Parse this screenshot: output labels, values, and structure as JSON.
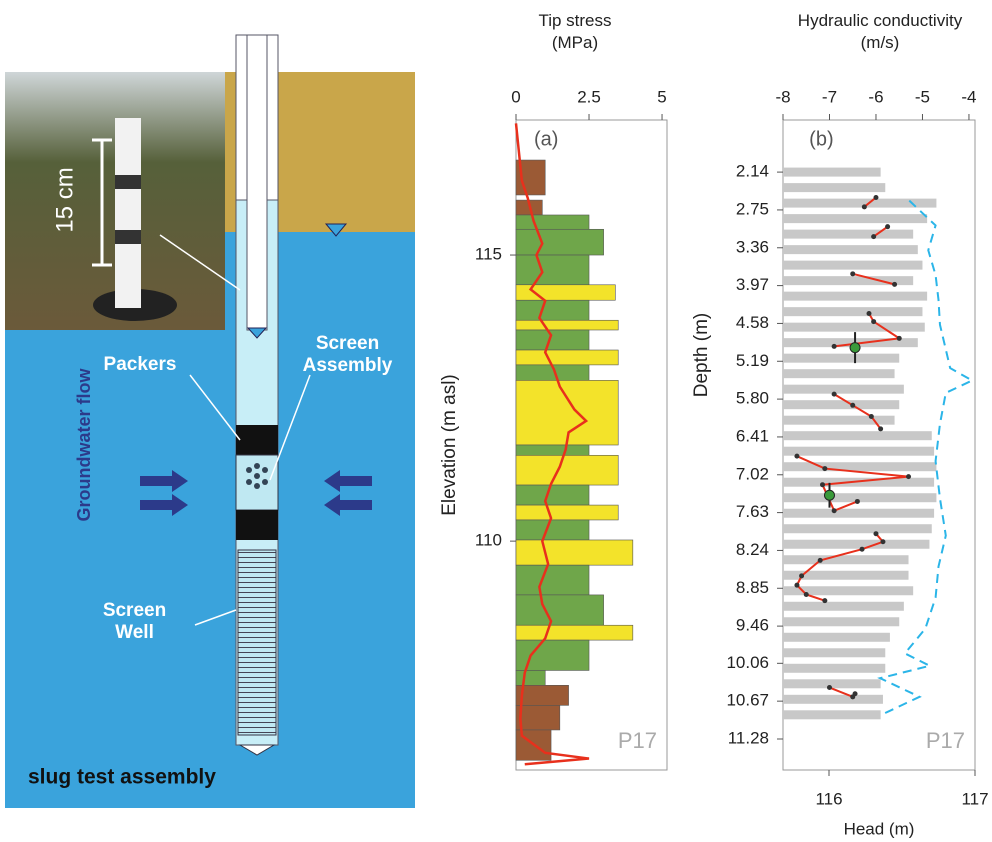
{
  "diagram": {
    "scale_label": "15 cm",
    "packers": "Packers",
    "screen_assembly": "Screen Assembly",
    "groundwater_flow": "Groundwater flow",
    "screen_well": "Screen Well",
    "caption": "slug test assembly"
  },
  "chart_data": [
    {
      "type": "bar",
      "title": "Tip stress (MPa)",
      "ylabel": "Elevation (m asl)",
      "annotation": "(a)",
      "label": "P17",
      "xlim": [
        0,
        5.17
      ],
      "xticks": [
        0,
        2.5,
        5
      ],
      "ylim": [
        106.0,
        117.36
      ],
      "yticks": [
        110,
        115
      ],
      "layer_top": [
        116.66,
        115.96,
        115.7,
        115.45,
        115.0,
        114.48,
        114.21,
        113.86,
        113.69,
        113.34,
        113.08,
        112.81,
        111.68,
        111.5,
        110.98,
        110.63,
        110.37,
        110.02,
        109.58,
        109.06,
        108.53,
        108.27,
        107.74,
        107.48,
        107.13,
        106.7
      ],
      "layer_bottom": [
        116.05,
        115.7,
        115.45,
        115.0,
        114.48,
        114.21,
        113.86,
        113.69,
        113.34,
        113.08,
        112.81,
        111.68,
        111.5,
        110.98,
        110.63,
        110.37,
        110.02,
        109.58,
        109.06,
        108.53,
        108.27,
        107.74,
        107.48,
        107.13,
        106.7,
        106.17
      ],
      "values": [
        1.0,
        0.9,
        2.5,
        3.0,
        2.5,
        3.4,
        2.5,
        3.5,
        2.5,
        3.5,
        2.5,
        3.5,
        2.5,
        3.5,
        2.5,
        3.5,
        2.5,
        4.0,
        2.5,
        3.0,
        4.0,
        2.5,
        1.0,
        1.8,
        1.5,
        1.2
      ],
      "colors": [
        "#9b5a35",
        "#9b5a35",
        "#6fa64a",
        "#6fa64a",
        "#6fa64a",
        "#f3e32a",
        "#6fa64a",
        "#f3e32a",
        "#6fa64a",
        "#f3e32a",
        "#6fa64a",
        "#f3e32a",
        "#6fa64a",
        "#f3e32a",
        "#6fa64a",
        "#f3e32a",
        "#6fa64a",
        "#f3e32a",
        "#6fa64a",
        "#6fa64a",
        "#f3e32a",
        "#6fa64a",
        "#6fa64a",
        "#9b5a35",
        "#9b5a35",
        "#9b5a35"
      ],
      "line": {
        "color": "#e8301c",
        "x": [
          0.0,
          0.1,
          0.2,
          0.4,
          0.6,
          0.9,
          0.7,
          0.9,
          0.5,
          1.0,
          0.8,
          1.2,
          1.0,
          1.3,
          1.5,
          2.0,
          2.4,
          1.8,
          1.7,
          1.5,
          1.2,
          1.0,
          1.2,
          0.9,
          1.1,
          0.8,
          0.9,
          1.2,
          1.0,
          0.5,
          0.3,
          0.2,
          0.15,
          0.2,
          1.0,
          2.5,
          0.3
        ],
        "values": [
          117.3,
          116.8,
          116.3,
          116.0,
          115.6,
          115.2,
          115.0,
          114.7,
          114.4,
          114.2,
          113.9,
          113.6,
          113.3,
          113.0,
          112.7,
          112.3,
          112.1,
          111.9,
          111.6,
          111.3,
          111.0,
          110.7,
          110.4,
          110.0,
          109.6,
          109.2,
          108.9,
          108.6,
          108.3,
          108.0,
          107.7,
          107.3,
          106.9,
          106.6,
          106.3,
          106.2,
          106.1
        ]
      }
    },
    {
      "type": "line",
      "title": "Hydraulic conductivity (m/s)",
      "xlabel": "Head (m)",
      "ylabel": "Depth (m)",
      "annotation": "(b)",
      "label": "P17",
      "xlim": [
        -8,
        -3.87
      ],
      "xticks": [
        -8,
        -7,
        -6,
        -5,
        -4
      ],
      "x2lim": [
        115.685,
        117
      ],
      "x2ticks": [
        116,
        117
      ],
      "ylim": [
        11.78,
        1.3
      ],
      "yticks": [
        2.14,
        2.75,
        3.36,
        3.97,
        4.58,
        5.19,
        {
          "value": 5.8,
          "label": "5.80"
        },
        6.41,
        7.02,
        7.63,
        8.24,
        8.85,
        9.46,
        10.06,
        10.67,
        11.28
      ],
      "bars": {
        "color": "#c8c8c8",
        "depths": [
          2.14,
          2.39,
          2.64,
          2.89,
          3.14,
          3.39,
          3.64,
          3.89,
          4.14,
          4.39,
          4.64,
          4.89,
          5.14,
          5.39,
          5.64,
          5.89,
          6.14,
          6.39,
          6.64,
          6.89,
          7.14,
          7.39,
          7.64,
          7.89,
          8.14,
          8.39,
          8.64,
          8.89,
          9.14,
          9.39,
          9.64,
          9.89,
          10.14,
          10.39,
          10.64,
          10.89
        ],
        "values": [
          -5.9,
          -5.8,
          -4.7,
          -4.9,
          -5.2,
          -5.1,
          -5.0,
          -5.2,
          -4.9,
          -5.0,
          -4.95,
          -5.1,
          -5.5,
          -5.6,
          -5.4,
          -5.5,
          -5.6,
          -4.8,
          -4.75,
          -4.7,
          -4.75,
          -4.7,
          -4.75,
          -4.8,
          -4.85,
          -5.3,
          -5.3,
          -5.2,
          -5.4,
          -5.5,
          -5.7,
          -5.8,
          -5.8,
          -5.9,
          -5.85,
          -5.9
        ]
      },
      "series": [
        {
          "color": "#e8301c",
          "x": [
            -6.0,
            -6.25,
            null,
            -5.75,
            -6.05,
            null,
            -6.5,
            -5.6,
            null,
            -6.15,
            -6.05,
            -5.5,
            -6.9,
            null,
            -6.9,
            -6.5,
            -6.1,
            -5.9,
            null,
            -7.7,
            -7.1,
            -5.3,
            -7.15,
            -6.9,
            -6.4,
            null,
            -6.0,
            -5.85,
            -6.3,
            -7.2,
            -7.6,
            -7.7,
            -7.5,
            -7.1,
            null,
            -7.0,
            -6.5,
            -6.45
          ],
          "values": [
            2.55,
            2.7,
            null,
            3.02,
            3.18,
            null,
            3.78,
            3.95,
            null,
            4.42,
            4.55,
            4.82,
            4.95,
            null,
            5.72,
            5.9,
            6.08,
            6.28,
            null,
            6.72,
            6.92,
            7.05,
            7.18,
            7.6,
            7.45,
            null,
            7.97,
            8.1,
            8.22,
            8.4,
            8.65,
            8.8,
            8.95,
            9.05,
            null,
            10.45,
            10.6,
            10.55
          ]
        },
        {
          "color": "#2bb5e8",
          "axis": "x2",
          "dashed": true,
          "x": [
            116.55,
            116.73,
            116.68,
            116.73,
            116.75,
            116.76,
            116.8,
            116.83,
            116.98,
            116.8,
            116.76,
            116.73,
            116.76,
            116.8,
            116.75,
            116.73,
            116.66,
            116.52,
            116.69,
            116.35,
            116.62,
            116.35
          ],
          "values": [
            2.6,
            3.0,
            3.4,
            3.8,
            4.2,
            4.6,
            5.0,
            5.3,
            5.5,
            5.7,
            6.2,
            6.8,
            7.4,
            8.0,
            8.5,
            9.0,
            9.5,
            9.9,
            10.1,
            10.3,
            10.6,
            10.9
          ]
        }
      ],
      "points": {
        "color": "#3a9a3a",
        "x": [
          -6.45,
          -7.0
        ],
        "values": [
          4.97,
          7.35
        ],
        "errors": [
          0.25,
          0.2
        ]
      }
    }
  ]
}
